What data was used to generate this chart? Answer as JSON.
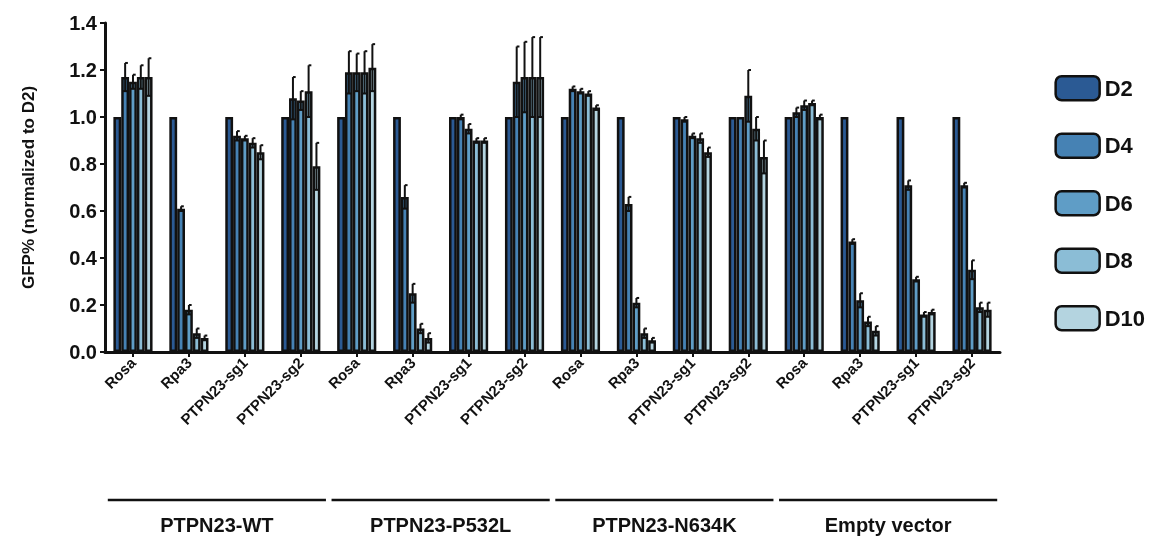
{
  "chart_data": {
    "type": "bar",
    "ylabel": "GFP% (normalized to D2)",
    "categories": [
      "Rosa",
      "Rpa3",
      "PTPN23-sg1",
      "PTPN23-sg2",
      "Rosa",
      "Rpa3",
      "PTPN23-sg1",
      "PTPN23-sg2",
      "Rosa",
      "Rpa3",
      "PTPN23-sg1",
      "PTPN23-sg2",
      "Rosa",
      "Rpa3",
      "PTPN23-sg1",
      "PTPN23-sg2"
    ],
    "annotations": [
      "PTPN23-WT",
      "PTPN23-P532L",
      "PTPN23-N634K",
      "Empty vector"
    ],
    "series": [
      {
        "name": "D2",
        "color": "#2b5a94",
        "values": [
          1.0,
          1.0,
          1.0,
          1.0,
          1.0,
          1.0,
          1.0,
          1.0,
          1.0,
          1.0,
          1.0,
          1.0,
          1.0,
          1.0,
          1.0,
          1.0
        ],
        "errors": [
          null,
          null,
          null,
          null,
          null,
          null,
          null,
          null,
          null,
          null,
          null,
          null,
          null,
          null,
          null,
          null
        ]
      },
      {
        "name": "D4",
        "color": "#4682b4",
        "values": [
          1.17,
          0.61,
          0.92,
          1.08,
          1.19,
          0.66,
          1.0,
          1.15,
          1.12,
          0.63,
          0.99,
          1.0,
          1.02,
          0.47,
          0.71,
          0.71
        ],
        "errors": [
          0.06,
          0.01,
          0.02,
          0.09,
          0.09,
          0.05,
          0.01,
          0.15,
          0.01,
          0.03,
          0.01,
          null,
          0.02,
          0.01,
          0.02,
          0.01
        ]
      },
      {
        "name": "D6",
        "color": "#5f9dc6",
        "values": [
          1.15,
          0.18,
          0.91,
          1.07,
          1.19,
          0.25,
          0.95,
          1.17,
          1.11,
          0.21,
          0.92,
          1.09,
          1.05,
          0.22,
          0.31,
          0.35
        ],
        "errors": [
          0.03,
          0.02,
          0.01,
          0.04,
          0.08,
          0.04,
          0.02,
          0.15,
          0.01,
          0.02,
          0.01,
          0.11,
          0.02,
          0.03,
          0.01,
          0.04
        ]
      },
      {
        "name": "D8",
        "color": "#8bbdd6",
        "values": [
          1.17,
          0.08,
          0.89,
          1.11,
          1.19,
          0.1,
          0.9,
          1.17,
          1.1,
          0.08,
          0.91,
          0.95,
          1.06,
          0.13,
          0.16,
          0.19
        ],
        "errors": [
          0.05,
          0.02,
          0.02,
          0.11,
          0.09,
          0.02,
          0.01,
          0.17,
          0.01,
          0.02,
          0.02,
          0.05,
          0.01,
          0.02,
          0.01,
          0.02
        ]
      },
      {
        "name": "D10",
        "color": "#b4d4e0",
        "values": [
          1.17,
          0.06,
          0.85,
          0.79,
          1.21,
          0.06,
          0.9,
          1.17,
          1.04,
          0.05,
          0.85,
          0.83,
          1.0,
          0.09,
          0.17,
          0.18
        ],
        "errors": [
          0.08,
          0.01,
          0.03,
          0.1,
          0.1,
          0.02,
          0.01,
          0.17,
          0.01,
          0.01,
          0.02,
          0.07,
          0.01,
          0.02,
          0.01,
          0.03
        ]
      }
    ],
    "ylim": [
      0,
      1.4
    ],
    "yticks": [
      {
        "value": 0,
        "label": "0.0"
      },
      0.2,
      0.4,
      0.6,
      0.8,
      {
        "value": 1,
        "label": "1.0"
      },
      1.2,
      1.4
    ],
    "legend": "right",
    "grid": false
  }
}
